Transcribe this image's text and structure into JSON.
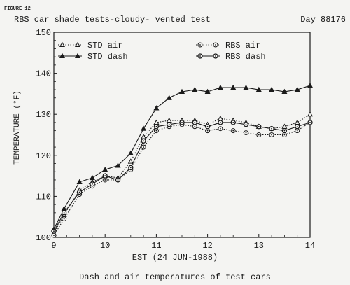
{
  "figure_label": "FIGURE 12",
  "chart_data": {
    "type": "line",
    "title": "RBS car shade tests-cloudy- vented test",
    "day_label": "Day 88176",
    "xlabel": "EST (24 JUN-1988)",
    "ylabel": "TEMPERATURE (°F)",
    "caption": "Dash and air temperatures of test cars",
    "xlim": [
      9,
      14
    ],
    "ylim": [
      100,
      150
    ],
    "x_ticks": [
      9,
      10,
      11,
      12,
      13,
      14
    ],
    "y_ticks": [
      100,
      110,
      120,
      130,
      140,
      150
    ],
    "grid": false,
    "legend_placement": "top",
    "series": [
      {
        "name": "STD air",
        "marker": "open-triangle",
        "line": "dotted",
        "x": [
          9.0,
          9.2,
          9.5,
          9.75,
          10.0,
          10.25,
          10.5,
          10.75,
          11.0,
          11.25,
          11.5,
          11.75,
          12.0,
          12.25,
          12.5,
          12.75,
          13.0,
          13.25,
          13.5,
          13.75,
          14.0
        ],
        "y": [
          101,
          105.5,
          111.5,
          113.5,
          115,
          114.5,
          118.5,
          124.5,
          128,
          128.5,
          128.5,
          128.5,
          127.5,
          129,
          128.5,
          128,
          127,
          126.5,
          127,
          128,
          130
        ]
      },
      {
        "name": "STD dash",
        "marker": "filled-triangle",
        "line": "solid",
        "x": [
          9.0,
          9.2,
          9.5,
          9.75,
          10.0,
          10.25,
          10.5,
          10.75,
          11.0,
          11.25,
          11.5,
          11.75,
          12.0,
          12.25,
          12.5,
          12.75,
          13.0,
          13.25,
          13.5,
          13.75,
          14.0
        ],
        "y": [
          102,
          107,
          113.5,
          114.5,
          116.5,
          117.5,
          120.5,
          126.5,
          131.5,
          134,
          135.5,
          136,
          135.5,
          136.5,
          136.5,
          136.5,
          136,
          136,
          135.5,
          136,
          137
        ]
      },
      {
        "name": "RBS air",
        "marker": "open-circle-dot",
        "line": "dotted",
        "x": [
          9.0,
          9.2,
          9.5,
          9.75,
          10.0,
          10.25,
          10.5,
          10.75,
          11.0,
          11.25,
          11.5,
          11.75,
          12.0,
          12.25,
          12.5,
          12.75,
          13.0,
          13.25,
          13.5,
          13.75,
          14.0
        ],
        "y": [
          100.5,
          104.5,
          110.5,
          112.5,
          114,
          114,
          116.5,
          122,
          126,
          127,
          127.5,
          127,
          126,
          126.5,
          126,
          125.5,
          125,
          125,
          125,
          126,
          128
        ]
      },
      {
        "name": "RBS dash",
        "marker": "circle-dot",
        "line": "solid",
        "x": [
          9.0,
          9.2,
          9.5,
          9.75,
          10.0,
          10.25,
          10.5,
          10.75,
          11.0,
          11.25,
          11.5,
          11.75,
          12.0,
          12.25,
          12.5,
          12.75,
          13.0,
          13.25,
          13.5,
          13.75,
          14.0
        ],
        "y": [
          101.5,
          106,
          111,
          113,
          115,
          114,
          117,
          123.5,
          127,
          127.5,
          128,
          128,
          127,
          128,
          128,
          127.5,
          127,
          126.5,
          126,
          127,
          128
        ]
      }
    ]
  }
}
